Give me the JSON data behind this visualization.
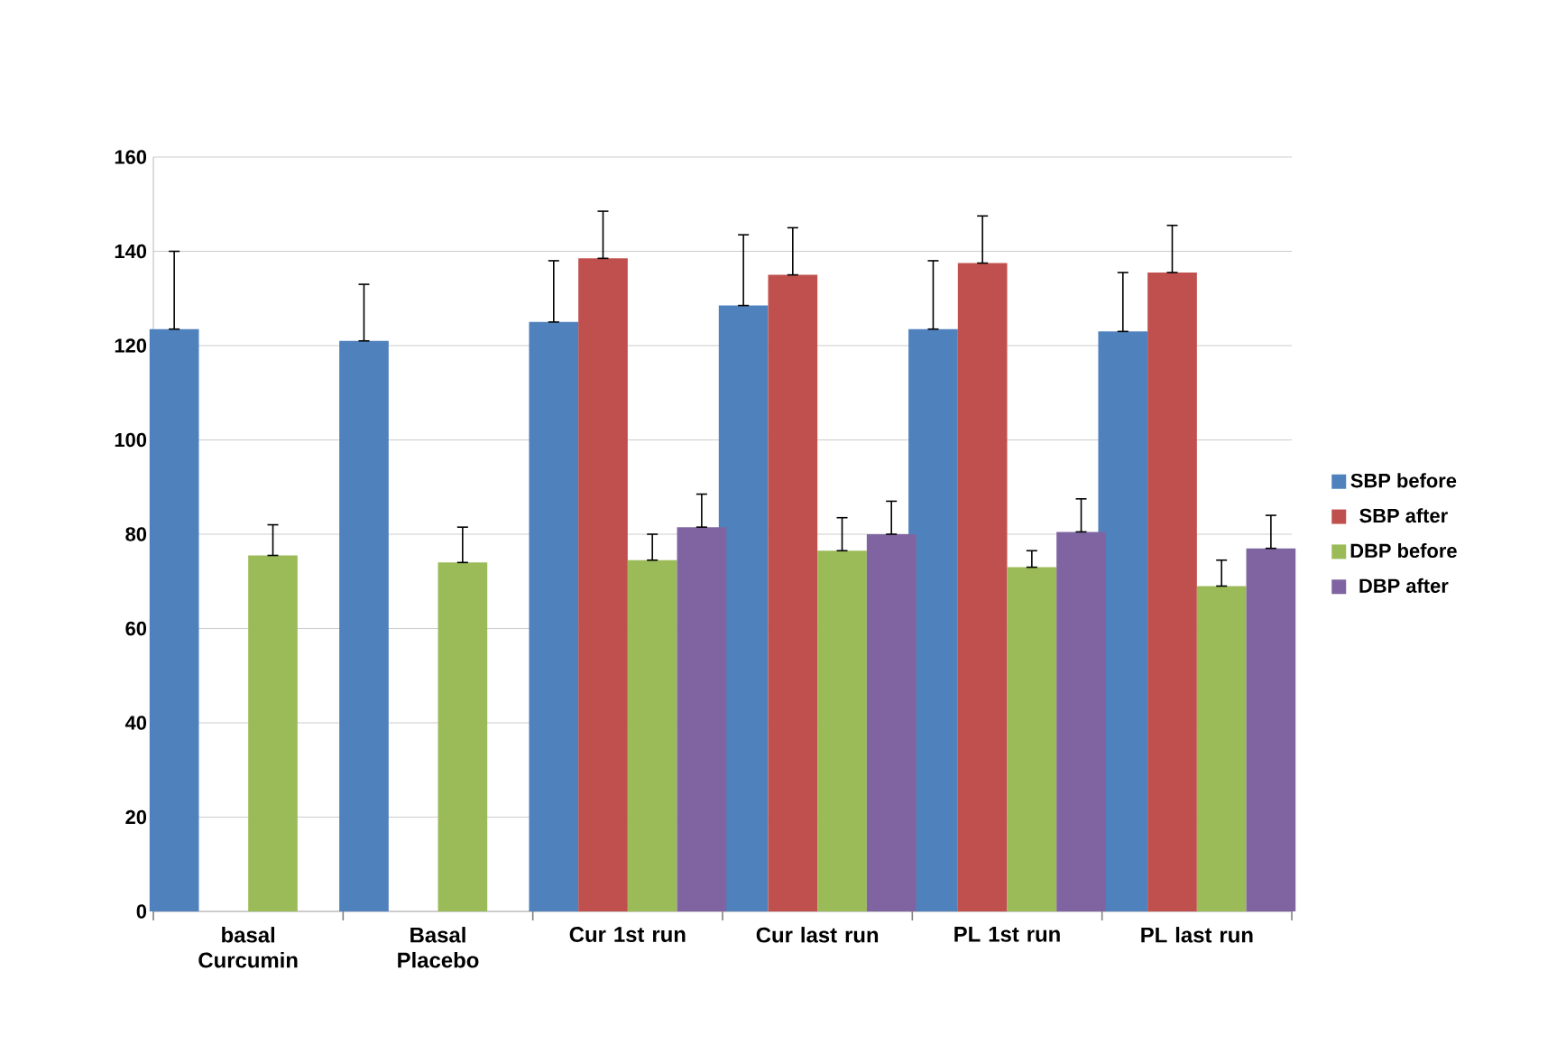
{
  "chart_data": {
    "type": "bar",
    "categories": [
      "basal Curcumin",
      "Basal Placebo",
      "Cur 1st run",
      "Cur last run",
      "PL 1st run",
      "PL last run"
    ],
    "series": [
      {
        "name": "SBP before",
        "color": "#4f81bd",
        "values": [
          123.5,
          121,
          125,
          128.5,
          123.5,
          123
        ],
        "errors": [
          [
            123.5,
            140
          ],
          [
            121,
            133
          ],
          [
            125,
            138
          ],
          [
            128.5,
            143.5
          ],
          [
            123.5,
            138
          ],
          [
            123,
            135.5
          ]
        ]
      },
      {
        "name": "SBP after",
        "color": "#c0504d",
        "values": [
          null,
          null,
          138.5,
          135,
          137.5,
          135.5
        ],
        "errors": [
          null,
          null,
          [
            138.5,
            148.5
          ],
          [
            135,
            145
          ],
          [
            137.5,
            147.5
          ],
          [
            135.5,
            145.5
          ]
        ]
      },
      {
        "name": "DBP before",
        "color": "#9bbb59",
        "values": [
          75.5,
          74,
          74.5,
          76.5,
          73,
          69
        ],
        "errors": [
          [
            75.5,
            82
          ],
          [
            74,
            81.5
          ],
          [
            74.5,
            80
          ],
          [
            76.5,
            83.5
          ],
          [
            73,
            76.5
          ],
          [
            69,
            74.5
          ]
        ]
      },
      {
        "name": "DBP after",
        "color": "#8064a2",
        "values": [
          null,
          null,
          81.5,
          80,
          80.5,
          77
        ],
        "errors": [
          null,
          null,
          [
            81.5,
            88.5
          ],
          [
            80,
            87
          ],
          [
            80.5,
            87.5
          ],
          [
            77,
            84
          ]
        ]
      }
    ],
    "ylim": [
      0,
      160
    ],
    "yticks": [
      0,
      20,
      40,
      60,
      80,
      100,
      120,
      140,
      160
    ],
    "grid": "y",
    "legend": "right"
  }
}
